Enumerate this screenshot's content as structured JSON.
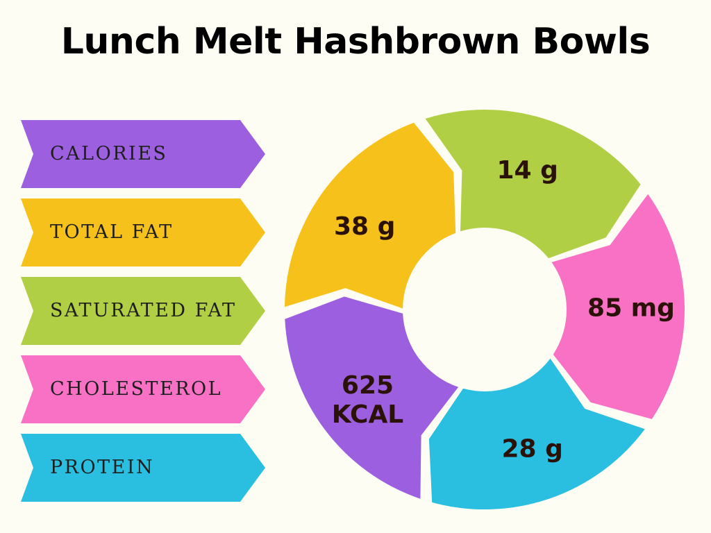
{
  "title": "Lunch Melt Hashbrown Bowls",
  "chart_data": {
    "type": "pie",
    "title": "Lunch Melt Hashbrown Bowls",
    "categories": [
      "CALORIES",
      "TOTAL FAT",
      "SATURATED FAT",
      "CHOLESTEROL",
      "PROTEIN"
    ],
    "values": [
      625,
      38,
      14,
      85,
      28
    ],
    "units": [
      "KCAL",
      "g",
      "g",
      "mg",
      "g"
    ],
    "series": [
      {
        "category": "CALORIES",
        "value": 625,
        "unit": "KCAL",
        "label_line1": "625",
        "label_line2": "KCAL",
        "color": "#9b5fe0"
      },
      {
        "category": "TOTAL FAT",
        "value": 38,
        "unit": "g",
        "label_line1": "38 g",
        "label_line2": "",
        "color": "#f7c11c"
      },
      {
        "category": "SATURATED FAT",
        "value": 14,
        "unit": "g",
        "label_line1": "14 g",
        "label_line2": "",
        "color": "#b1cf45"
      },
      {
        "category": "CHOLESTEROL",
        "value": 85,
        "unit": "mg",
        "label_line1": "85 mg",
        "label_line2": "",
        "color": "#f871c4"
      },
      {
        "category": "PROTEIN",
        "value": 28,
        "unit": "g",
        "label_line1": "28 g",
        "label_line2": "",
        "color": "#2abfe0"
      }
    ],
    "legend": "left"
  }
}
